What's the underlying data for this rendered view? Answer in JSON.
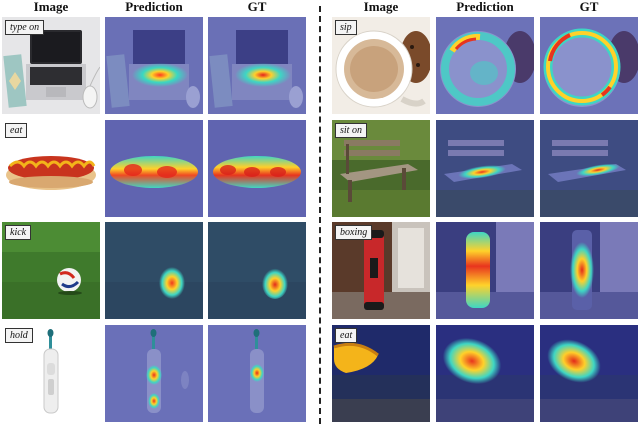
{
  "headers": {
    "left": [
      "Image",
      "Prediction",
      "GT"
    ],
    "right": [
      "Image",
      "Prediction",
      "GT"
    ]
  },
  "rows": {
    "left": [
      {
        "verb": "type on"
      },
      {
        "verb": "eat"
      },
      {
        "verb": "kick"
      },
      {
        "verb": "hold"
      }
    ],
    "right": [
      {
        "verb": "sip"
      },
      {
        "verb": "sit on"
      },
      {
        "verb": "boxing"
      },
      {
        "verb": "eat"
      }
    ]
  },
  "colors": {
    "heat_bg": "#5a64b0",
    "heat_hot": "#e8321e",
    "heat_warm": "#ffd62a",
    "heat_mid": "#3fd6c6"
  }
}
